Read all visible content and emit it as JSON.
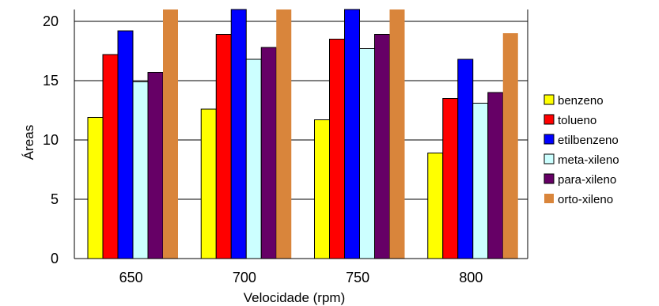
{
  "chart_data": {
    "type": "bar",
    "title": "",
    "xlabel": "Velocidade (rpm)",
    "ylabel": "Áreas",
    "ylim": [
      0,
      21
    ],
    "yticks": [
      0,
      5,
      10,
      15,
      20
    ],
    "grid": true,
    "legend_position": "right",
    "categories": [
      "650",
      "700",
      "750",
      "800"
    ],
    "series": [
      {
        "name": "benzeno",
        "color": "#ffff00",
        "values": [
          11.9,
          12.6,
          11.7,
          8.9
        ]
      },
      {
        "name": "tolueno",
        "color": "#ff0000",
        "values": [
          17.2,
          18.9,
          18.5,
          13.5
        ]
      },
      {
        "name": "etilbenzeno",
        "color": "#0000ff",
        "values": [
          19.2,
          21,
          21,
          16.8
        ]
      },
      {
        "name": "meta-xileno",
        "color": "#ccffff",
        "values": [
          14.9,
          16.8,
          17.7,
          13.1
        ]
      },
      {
        "name": "para-xileno",
        "color": "#660066",
        "values": [
          15.7,
          17.8,
          18.9,
          14.0
        ]
      },
      {
        "name": "orto-xileno",
        "color": "#d9853b",
        "values": [
          21,
          21,
          21,
          19.0
        ]
      }
    ]
  }
}
